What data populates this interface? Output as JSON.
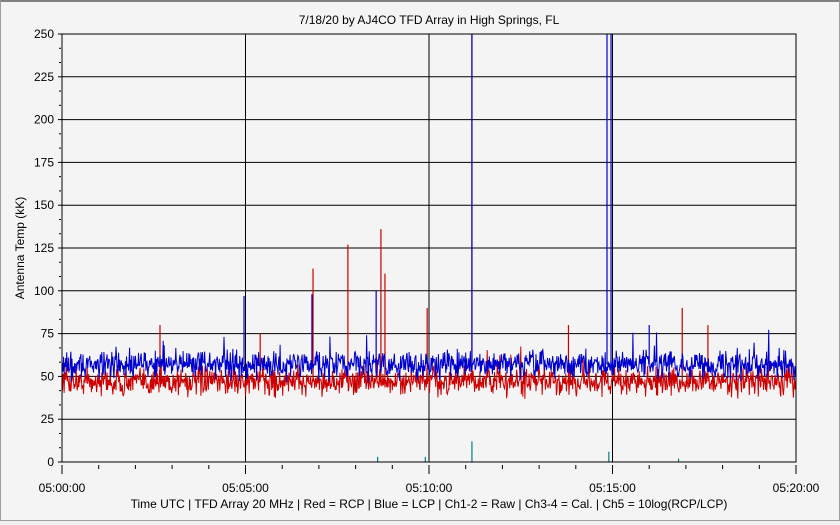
{
  "chart_data": {
    "type": "line",
    "title": "7/18/20  by  AJ4CO TFD Array  in  High Springs, FL",
    "xlabel": "Time UTC | TFD Array 20 MHz | Red = RCP | Blue = LCP | Ch1-2 = Raw | Ch3-4 = Cal. | Ch5 = 10log(RCP/LCP)",
    "ylabel": "Antenna Temp (kK)",
    "x_unit": "minutes after 05:00:00",
    "xlim": [
      0,
      20
    ],
    "ylim": [
      0,
      250
    ],
    "x_ticks": [
      0,
      5,
      10,
      15,
      20
    ],
    "x_tick_labels": [
      "05:00:00",
      "05:05:00",
      "05:10:00",
      "05:15:00",
      "05:20:00"
    ],
    "y_ticks": [
      0,
      25,
      50,
      75,
      100,
      125,
      150,
      175,
      200,
      225,
      250
    ],
    "y_tick_labels": [
      "0",
      "25",
      "50",
      "75",
      "100",
      "125",
      "150",
      "175",
      "200",
      "225",
      "250"
    ],
    "grid": true,
    "series": [
      {
        "name": "RCP",
        "color": "#cc0000",
        "baseline": 47,
        "noise": 6,
        "spikes": [
          [
            2.67,
            80
          ],
          [
            5.4,
            75
          ],
          [
            6.84,
            113
          ],
          [
            7.79,
            127
          ],
          [
            8.69,
            136
          ],
          [
            8.8,
            110
          ],
          [
            9.95,
            90
          ],
          [
            11.17,
            250
          ],
          [
            13.8,
            80
          ],
          [
            16.9,
            90
          ],
          [
            17.6,
            80
          ]
        ]
      },
      {
        "name": "LCP",
        "color": "#0000cc",
        "baseline": 57,
        "noise": 6,
        "spikes": [
          [
            4.96,
            97
          ],
          [
            6.81,
            98
          ],
          [
            8.56,
            100
          ],
          [
            11.17,
            250
          ],
          [
            14.85,
            250
          ],
          [
            14.96,
            250
          ],
          [
            16.0,
            80
          ]
        ]
      },
      {
        "name": "Ch5",
        "color": "#008080",
        "baseline": 0,
        "noise": 0,
        "spikes": [
          [
            8.6,
            3
          ],
          [
            9.9,
            3
          ],
          [
            11.17,
            12
          ],
          [
            14.9,
            6
          ],
          [
            16.8,
            2
          ]
        ]
      }
    ]
  }
}
